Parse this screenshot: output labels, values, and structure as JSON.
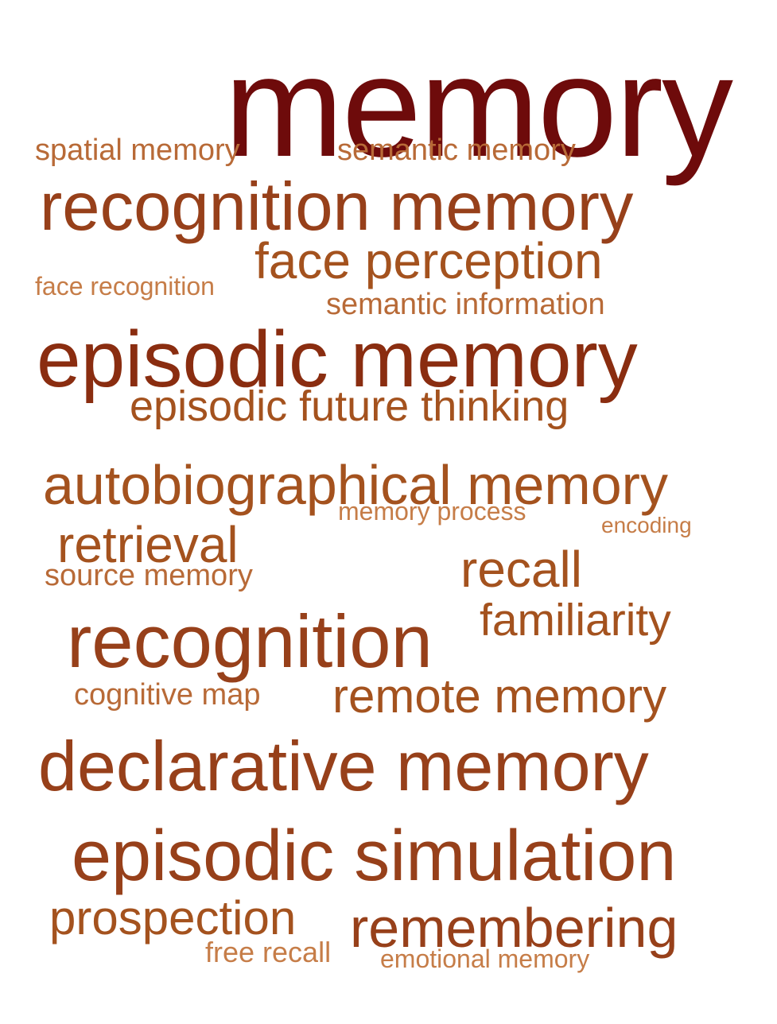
{
  "words": [
    {
      "text": "memory",
      "color": "#6e0b0b"
    },
    {
      "text": "spatial memory",
      "color": "#b86a37"
    },
    {
      "text": "semantic memory",
      "color": "#b86a37"
    },
    {
      "text": "recognition memory",
      "color": "#97401a"
    },
    {
      "text": "face perception",
      "color": "#a4521e"
    },
    {
      "text": "face recognition",
      "color": "#c67d48"
    },
    {
      "text": "semantic information",
      "color": "#b86a37"
    },
    {
      "text": "episodic memory",
      "color": "#8a2d10"
    },
    {
      "text": "episodic future thinking",
      "color": "#a4521e"
    },
    {
      "text": "autobiographical memory",
      "color": "#a4521e"
    },
    {
      "text": "memory process",
      "color": "#c67d48"
    },
    {
      "text": "encoding",
      "color": "#c67d48"
    },
    {
      "text": "retrieval",
      "color": "#a4521e"
    },
    {
      "text": "recall",
      "color": "#a4521e"
    },
    {
      "text": "source memory",
      "color": "#b86a37"
    },
    {
      "text": "familiarity",
      "color": "#a4521e"
    },
    {
      "text": "recognition",
      "color": "#97401a"
    },
    {
      "text": "cognitive map",
      "color": "#b86a37"
    },
    {
      "text": "remote memory",
      "color": "#a4521e"
    },
    {
      "text": "declarative memory",
      "color": "#97401a"
    },
    {
      "text": "episodic simulation",
      "color": "#97401a"
    },
    {
      "text": "prospection",
      "color": "#a4521e"
    },
    {
      "text": "remembering",
      "color": "#97401a"
    },
    {
      "text": "free recall",
      "color": "#c67d48"
    },
    {
      "text": "emotional memory",
      "color": "#c67d48"
    }
  ]
}
